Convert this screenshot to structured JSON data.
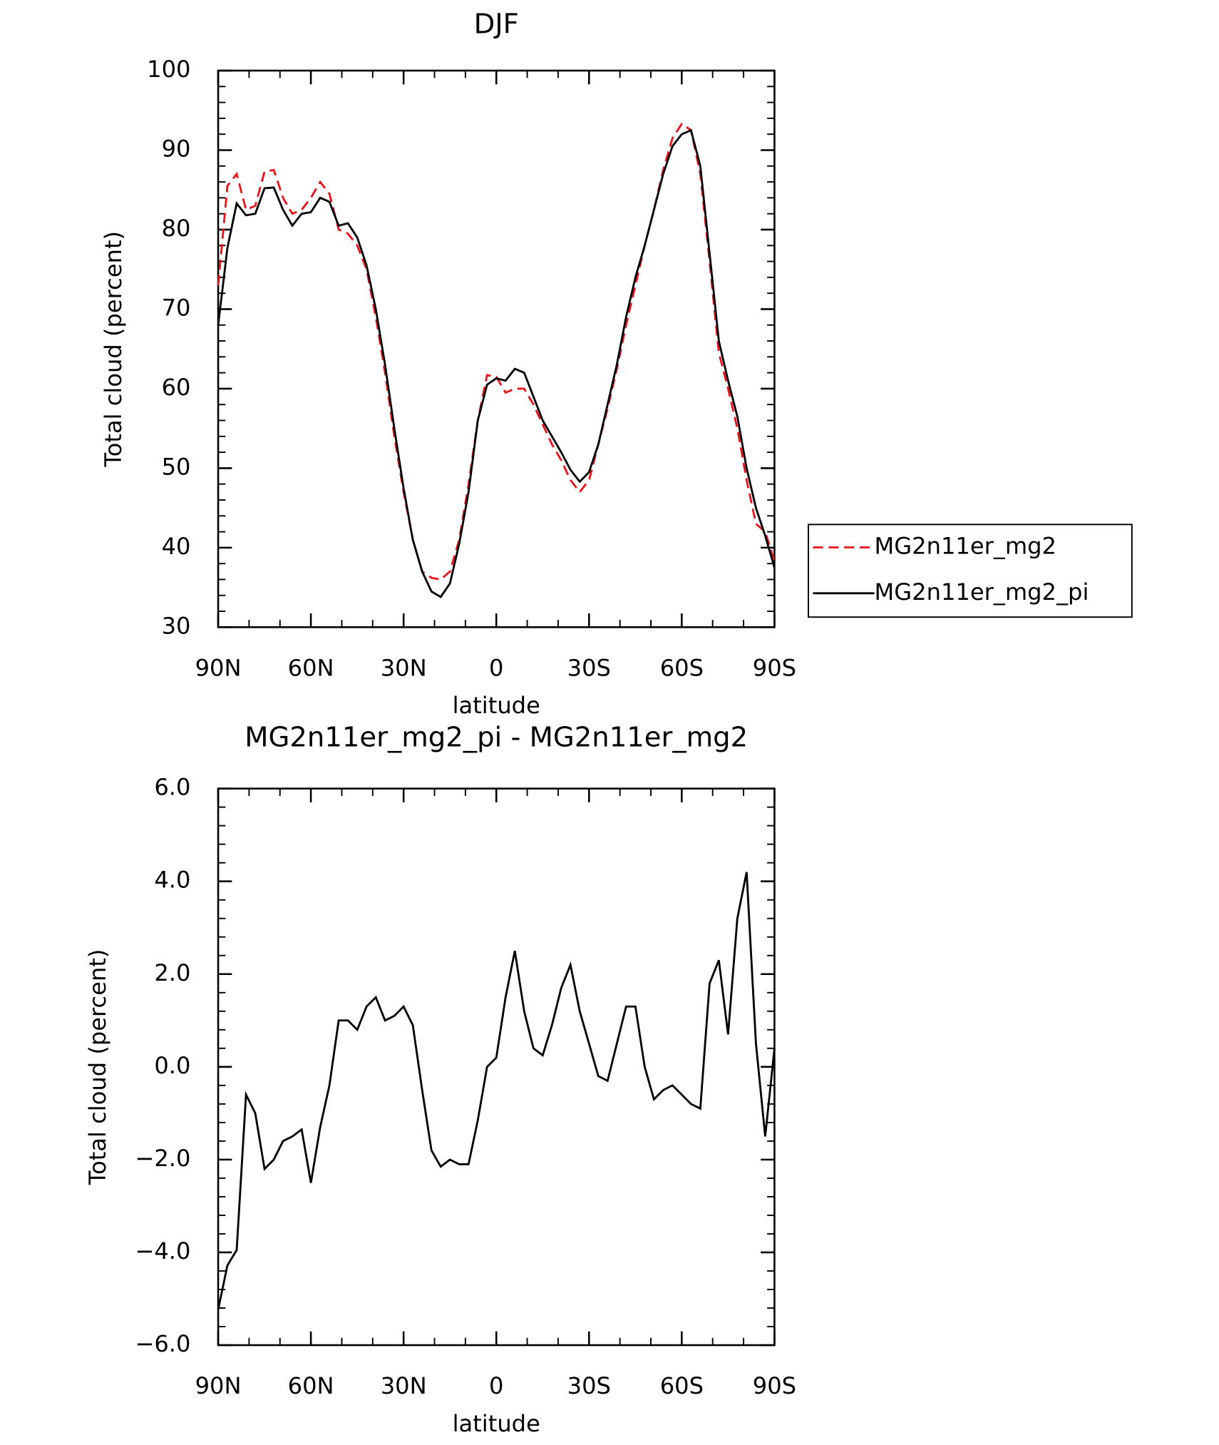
{
  "chart_data": [
    {
      "type": "line",
      "title": "DJF",
      "x_label": "latitude",
      "y_label": "Total cloud (percent)",
      "x": [
        90,
        87,
        84,
        81,
        78,
        75,
        72,
        69,
        66,
        63,
        60,
        57,
        54,
        51,
        48,
        45,
        42,
        39,
        36,
        33,
        30,
        27,
        24,
        21,
        18,
        15,
        12,
        9,
        6,
        3,
        0,
        -3,
        -6,
        -9,
        -12,
        -15,
        -18,
        -21,
        -24,
        -27,
        -30,
        -33,
        -36,
        -39,
        -42,
        -45,
        -48,
        -51,
        -54,
        -57,
        -60,
        -63,
        -66,
        -69,
        -72,
        -75,
        -78,
        -81,
        -84,
        -87,
        -90
      ],
      "series": [
        {
          "name": "MG2n11er_mg2",
          "color": "#e8141b",
          "dash": true,
          "values": [
            73,
            85.5,
            87,
            82.5,
            83,
            87.3,
            87.5,
            84,
            82,
            82.5,
            84,
            86,
            84.5,
            80,
            79.5,
            78,
            75,
            69,
            62,
            54,
            47,
            41,
            37,
            36.2,
            36,
            37,
            41,
            48,
            56,
            61.7,
            61.5,
            59.5,
            60,
            60,
            58,
            55.5,
            53,
            51,
            48.5,
            47,
            48.5,
            53,
            57.5,
            62.5,
            68,
            73,
            78,
            82.5,
            87.5,
            91.5,
            93.3,
            92.5,
            87,
            76,
            64.5,
            60,
            55,
            48.5,
            43,
            42,
            38.3
          ]
        },
        {
          "name": "MG2n11er_mg2_pi",
          "color": "#000000",
          "dash": false,
          "values": [
            68,
            77.7,
            83.3,
            81.8,
            82,
            85.2,
            85.3,
            82.5,
            80.5,
            82,
            82.2,
            84,
            83.5,
            80.5,
            80.8,
            79,
            75.5,
            70,
            63,
            55,
            47.5,
            41,
            37,
            34.5,
            33.8,
            35.5,
            40.5,
            47,
            56,
            60.5,
            61.3,
            61,
            62.5,
            62,
            59,
            56,
            54,
            52,
            49.8,
            48.3,
            49.5,
            53,
            58,
            63,
            69,
            74,
            78,
            82.5,
            87,
            90.5,
            92,
            92.5,
            88,
            77,
            66,
            61,
            56.5,
            50,
            45,
            41.5,
            37.5
          ]
        }
      ],
      "xlim": [
        90,
        -90
      ],
      "xticks": [
        {
          "value": 90,
          "label": "90N"
        },
        {
          "value": 60,
          "label": "60N"
        },
        {
          "value": 30,
          "label": "30N"
        },
        0,
        {
          "value": -30,
          "label": "30S"
        },
        {
          "value": -60,
          "label": "60S"
        },
        {
          "value": -90,
          "label": "90S"
        }
      ],
      "ylim": [
        30,
        100
      ],
      "yticks": [
        30,
        40,
        50,
        60,
        70,
        80,
        90,
        100
      ],
      "legend": "right"
    },
    {
      "type": "line",
      "title": "MG2n11er_mg2_pi - MG2n11er_mg2",
      "x_label": "latitude",
      "y_label": "Total cloud (percent)",
      "x": [
        90,
        87,
        84,
        81,
        78,
        75,
        72,
        69,
        66,
        63,
        60,
        57,
        54,
        51,
        48,
        45,
        42,
        39,
        36,
        33,
        30,
        27,
        24,
        21,
        18,
        15,
        12,
        9,
        6,
        3,
        0,
        -3,
        -6,
        -9,
        -12,
        -15,
        -18,
        -21,
        -24,
        -27,
        -30,
        -33,
        -36,
        -39,
        -42,
        -45,
        -48,
        -51,
        -54,
        -57,
        -60,
        -63,
        -66,
        -69,
        -72,
        -75,
        -78,
        -81,
        -84,
        -87,
        -90
      ],
      "values": [
        -5.23,
        -4.28,
        -3.95,
        -0.6,
        -1.0,
        -2.2,
        -2.0,
        -1.6,
        -1.5,
        -1.35,
        -2.5,
        -1.3,
        -0.4,
        1.0,
        1.0,
        0.8,
        1.3,
        1.5,
        1.0,
        1.1,
        1.3,
        0.9,
        -0.5,
        -1.8,
        -2.15,
        -2.0,
        -2.1,
        -2.1,
        -1.15,
        0,
        0.2,
        1.5,
        2.5,
        1.2,
        0.4,
        0.25,
        0.9,
        1.7,
        2.2,
        1.2,
        0.5,
        -0.2,
        -0.3,
        0.5,
        1.3,
        1.3,
        0,
        -0.7,
        -0.5,
        -0.4,
        -0.6,
        -0.8,
        -0.9,
        1.8,
        2.3,
        0.7,
        3.2,
        4.2,
        0.5,
        -1.5,
        0.4
      ],
      "color": "#000000",
      "xlim": [
        90,
        -90
      ],
      "xticks": [
        {
          "value": 90,
          "label": "90N"
        },
        {
          "value": 60,
          "label": "60N"
        },
        {
          "value": 30,
          "label": "30N"
        },
        0,
        {
          "value": -30,
          "label": "30S"
        },
        {
          "value": -60,
          "label": "60S"
        },
        {
          "value": -90,
          "label": "90S"
        }
      ],
      "ylim": [
        -6,
        6
      ],
      "yticks": [
        {
          "value": -6,
          "label": "−6.0"
        },
        {
          "value": -4,
          "label": "−4.0"
        },
        {
          "value": -2,
          "label": "−2.0"
        },
        {
          "value": 0,
          "label": "0.0"
        },
        {
          "value": 2,
          "label": "2.0"
        },
        {
          "value": 4,
          "label": "4.0"
        },
        {
          "value": 6,
          "label": "6.0"
        }
      ]
    }
  ]
}
